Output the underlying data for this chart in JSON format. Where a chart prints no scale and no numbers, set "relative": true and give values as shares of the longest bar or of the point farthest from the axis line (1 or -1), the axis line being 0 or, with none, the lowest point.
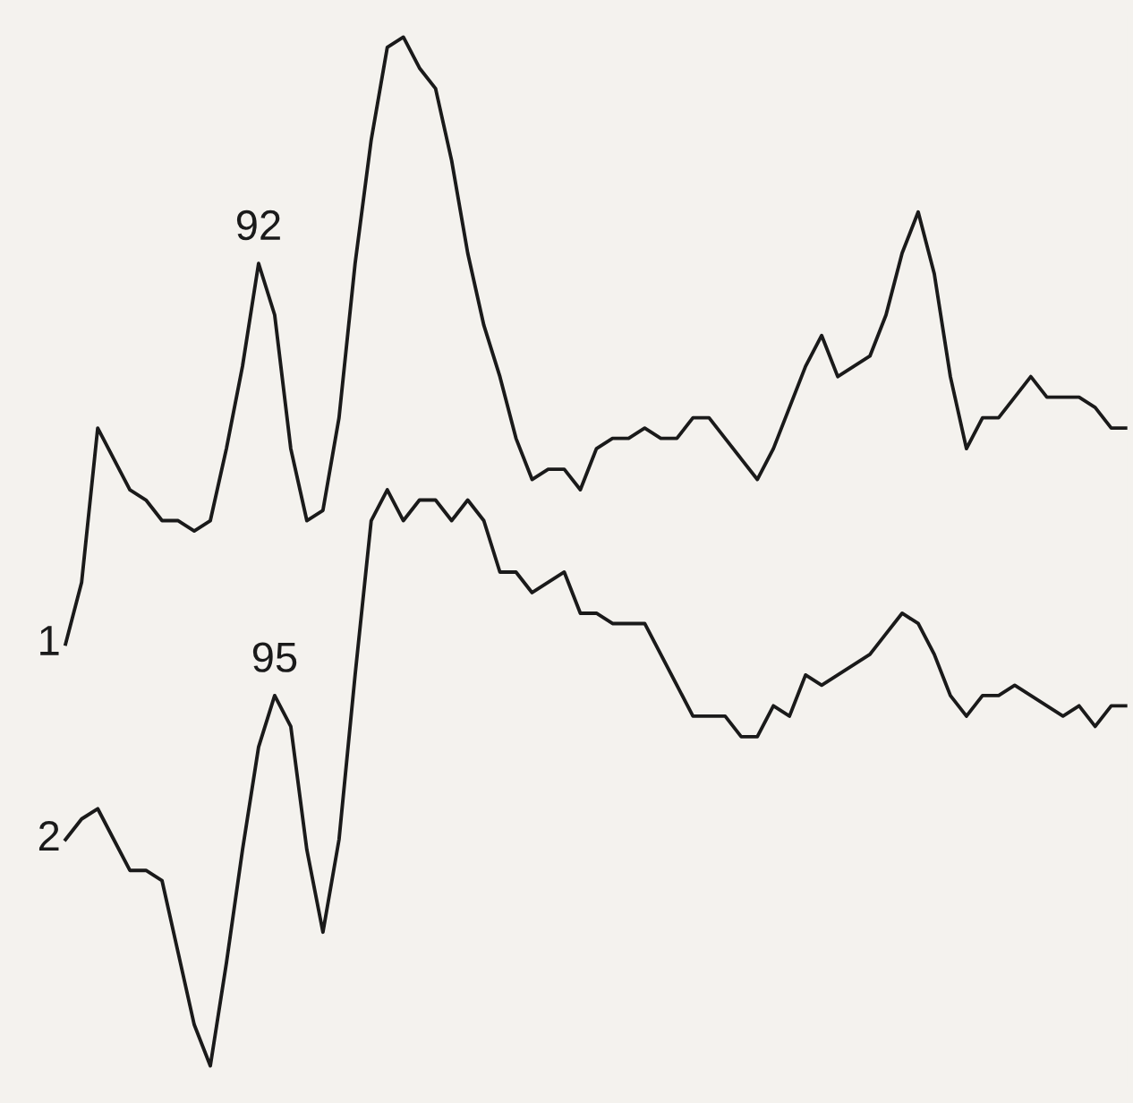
{
  "chart_data": {
    "type": "line",
    "relative": true,
    "legend": false,
    "grid": false,
    "marker": "none",
    "line_style": "solid",
    "categories": [
      null,
      null,
      null,
      null,
      null,
      null,
      null,
      null,
      null,
      null,
      null,
      null,
      null,
      null,
      null,
      null,
      null,
      null,
      null,
      null,
      null,
      null,
      null,
      null,
      null,
      null,
      null,
      null,
      null,
      null,
      null,
      null,
      null,
      null,
      null,
      null,
      null,
      null,
      null,
      null,
      null,
      null,
      null,
      null,
      null,
      null,
      null,
      null,
      null,
      null,
      null,
      null,
      null,
      null,
      null,
      null,
      null,
      null,
      null,
      null,
      null,
      null,
      null,
      null,
      null,
      null,
      null
    ],
    "series": [
      {
        "name": "1",
        "color": "#1a1a1a",
        "values": [
          0.41,
          0.47,
          0.62,
          0.59,
          0.56,
          0.55,
          0.53,
          0.53,
          0.52,
          0.53,
          0.6,
          0.68,
          0.78,
          0.73,
          0.6,
          0.53,
          0.54,
          0.63,
          0.78,
          0.9,
          0.99,
          1.0,
          0.97,
          0.95,
          0.88,
          0.79,
          0.72,
          0.67,
          0.61,
          0.57,
          0.58,
          0.58,
          0.56,
          0.6,
          0.61,
          0.61,
          0.62,
          0.61,
          0.61,
          0.63,
          0.63,
          0.61,
          0.59,
          0.57,
          0.6,
          0.64,
          0.68,
          0.71,
          0.67,
          0.68,
          0.69,
          0.73,
          0.79,
          0.83,
          0.77,
          0.67,
          0.6,
          0.63,
          0.63,
          0.65,
          0.67,
          0.65,
          0.65,
          0.65,
          0.64,
          0.62,
          0.62
        ]
      },
      {
        "name": "2",
        "color": "#1a1a1a",
        "values": [
          0.22,
          0.24,
          0.25,
          0.22,
          0.19,
          0.19,
          0.18,
          0.11,
          0.04,
          0.0,
          0.1,
          0.21,
          0.31,
          0.36,
          0.33,
          0.21,
          0.13,
          0.22,
          0.38,
          0.53,
          0.56,
          0.53,
          0.55,
          0.55,
          0.53,
          0.55,
          0.53,
          0.48,
          0.48,
          0.46,
          0.47,
          0.48,
          0.44,
          0.44,
          0.43,
          0.43,
          0.43,
          0.4,
          0.37,
          0.34,
          0.34,
          0.34,
          0.32,
          0.32,
          0.35,
          0.34,
          0.38,
          0.37,
          0.38,
          0.39,
          0.4,
          0.42,
          0.44,
          0.43,
          0.4,
          0.36,
          0.34,
          0.36,
          0.36,
          0.37,
          0.36,
          0.35,
          0.34,
          0.35,
          0.33,
          0.35,
          0.35
        ]
      }
    ],
    "annotations": [
      "92",
      "95"
    ]
  }
}
